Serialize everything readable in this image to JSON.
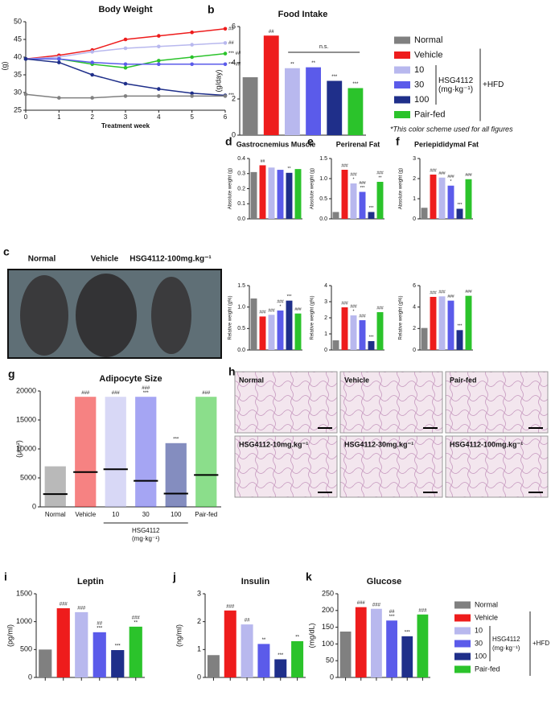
{
  "chart_data": [
    {
      "type": "line",
      "label": "a",
      "title": "Body Weight",
      "x_label": "Treatment week",
      "y_label": "(g)",
      "x": [
        0,
        1,
        2,
        3,
        4,
        5,
        6
      ],
      "xlim": [
        0,
        6
      ],
      "xticks": [
        0,
        1,
        2,
        3,
        4,
        5,
        6
      ],
      "ylim": [
        25,
        50
      ],
      "yticks": [
        25,
        30,
        35,
        40,
        45,
        50
      ],
      "series": [
        {
          "color": "#ee1c1c",
          "values": [
            39.5,
            40.5,
            42,
            45,
            46,
            47,
            48
          ],
          "annotation": "##"
        },
        {
          "color": "#b8b8ee",
          "values": [
            39.5,
            40,
            41.5,
            42.5,
            43,
            43.5,
            44
          ],
          "annotation": "##"
        },
        {
          "color": "#2bc32b",
          "values": [
            39.5,
            39.5,
            38,
            37,
            39,
            40,
            41
          ],
          "annotation": "*** ##"
        },
        {
          "color": "#5b5bea",
          "values": [
            39.5,
            39.5,
            38.5,
            38,
            38,
            38,
            38
          ],
          "annotation": "*** ##"
        },
        {
          "color": "#1f2f8a",
          "values": [
            39.5,
            38.5,
            35,
            32.5,
            31,
            29.8,
            29.2
          ],
          "annotation": "***"
        },
        {
          "color": "#808080",
          "values": [
            29.5,
            28.5,
            28.5,
            29,
            29,
            29,
            29
          ],
          "annotation": null
        }
      ]
    },
    {
      "type": "bar",
      "label": "b",
      "title": "Food Intake",
      "y_label": "(g/day)",
      "categories": [
        "Normal",
        "Vehicle",
        "10",
        "30",
        "100",
        "Pair-fed"
      ],
      "colors": [
        "#808080",
        "#ee1c1c",
        "#b8b8ee",
        "#5b5bea",
        "#1f2f8a",
        "#2bc32b"
      ],
      "values": [
        3.2,
        5.5,
        3.7,
        3.75,
        3.0,
        2.6
      ],
      "ylim": [
        0,
        6
      ],
      "yticks": [
        0,
        2,
        4,
        6
      ],
      "annotations": [
        [],
        [
          "##"
        ],
        [
          "**"
        ],
        [
          "**"
        ],
        [
          "***"
        ],
        [
          "***"
        ]
      ],
      "bracket_label": "n.s.",
      "legend": true,
      "legend_group": [
        "HSG4112",
        "(mg·kg⁻¹)"
      ],
      "legend_condition": "+HFD",
      "note": "*This color scheme used for all figures"
    },
    {
      "type": "bar",
      "label": "d",
      "title": "Gastrocnemius Muscle",
      "y_label": "Absolute weight (g)",
      "categories": [
        null,
        null,
        null,
        null,
        null,
        null
      ],
      "colors": [
        "#808080",
        "#ee1c1c",
        "#b8b8ee",
        "#5b5bea",
        "#1f2f8a",
        "#2bc32b"
      ],
      "values": [
        0.31,
        0.355,
        0.34,
        0.325,
        0.305,
        0.33
      ],
      "ylim": [
        0,
        0.4
      ],
      "yticks": [
        {
          "value": 0,
          "label": "0.0"
        },
        0.1,
        0.2,
        0.3,
        0.4
      ],
      "annotations": [
        [],
        [
          "##"
        ],
        [],
        [],
        [
          "**"
        ],
        []
      ]
    },
    {
      "type": "bar",
      "y_label": "Relative weight (g%)",
      "categories": [
        null,
        null,
        null,
        null,
        null,
        null
      ],
      "colors": [
        "#808080",
        "#ee1c1c",
        "#b8b8ee",
        "#5b5bea",
        "#1f2f8a",
        "#2bc32b"
      ],
      "values": [
        1.2,
        0.78,
        0.82,
        0.92,
        1.15,
        0.85
      ],
      "ylim": [
        0,
        1.5
      ],
      "yticks": [
        {
          "value": 0,
          "label": "0.0"
        },
        0.5,
        {
          "value": 1,
          "label": "1.0"
        },
        1.5
      ],
      "annotations": [
        [],
        [
          "###"
        ],
        [
          "###"
        ],
        [
          "###",
          "*"
        ],
        [
          "***"
        ],
        [
          "###"
        ]
      ]
    },
    {
      "type": "bar",
      "label": "e",
      "title": "Perirenal Fat",
      "y_label": "Absolute weight (g)",
      "categories": [
        null,
        null,
        null,
        null,
        null,
        null
      ],
      "colors": [
        "#808080",
        "#ee1c1c",
        "#b8b8ee",
        "#5b5bea",
        "#1f2f8a",
        "#2bc32b"
      ],
      "values": [
        0.17,
        1.22,
        0.88,
        0.67,
        0.17,
        0.92
      ],
      "ylim": [
        0,
        1.5
      ],
      "yticks": [
        {
          "value": 0,
          "label": "0.0"
        },
        0.5,
        {
          "value": 1,
          "label": "1.0"
        },
        1.5
      ],
      "annotations": [
        [],
        [
          "###"
        ],
        [
          "###",
          "*"
        ],
        [
          "###",
          "***"
        ],
        [
          "***"
        ],
        [
          "###",
          "**"
        ]
      ]
    },
    {
      "type": "bar",
      "y_label": "Relative weight (g%)",
      "categories": [
        null,
        null,
        null,
        null,
        null,
        null
      ],
      "colors": [
        "#808080",
        "#ee1c1c",
        "#b8b8ee",
        "#5b5bea",
        "#1f2f8a",
        "#2bc32b"
      ],
      "values": [
        0.6,
        2.65,
        2.15,
        1.85,
        0.55,
        2.35
      ],
      "ylim": [
        0,
        4
      ],
      "yticks": [
        0,
        1,
        2,
        3,
        4
      ],
      "annotations": [
        [],
        [
          "###"
        ],
        [
          "###",
          "*"
        ],
        [
          "###"
        ],
        [
          "***"
        ],
        [
          "###"
        ]
      ]
    },
    {
      "type": "bar",
      "label": "f",
      "title": "Periepididymal Fat",
      "y_label": "Absolute weight (g)",
      "categories": [
        null,
        null,
        null,
        null,
        null,
        null
      ],
      "colors": [
        "#808080",
        "#ee1c1c",
        "#b8b8ee",
        "#5b5bea",
        "#1f2f8a",
        "#2bc32b"
      ],
      "values": [
        0.55,
        2.2,
        2.05,
        1.65,
        0.5,
        1.97
      ],
      "ylim": [
        0,
        3
      ],
      "yticks": [
        0,
        1,
        2,
        3
      ],
      "annotations": [
        [],
        [
          "###"
        ],
        [
          "###"
        ],
        [
          "###",
          "*"
        ],
        [
          "***"
        ],
        [
          "###"
        ]
      ]
    },
    {
      "type": "bar",
      "y_label": "Relative weight (g%)",
      "categories": [
        null,
        null,
        null,
        null,
        null,
        null
      ],
      "colors": [
        "#808080",
        "#ee1c1c",
        "#b8b8ee",
        "#5b5bea",
        "#1f2f8a",
        "#2bc32b"
      ],
      "values": [
        2.05,
        4.95,
        5.0,
        4.6,
        1.85,
        5.05
      ],
      "ylim": [
        0,
        6
      ],
      "yticks": [
        0,
        2,
        4,
        6
      ],
      "annotations": [
        [],
        [
          "###"
        ],
        [
          "###"
        ],
        [
          "###"
        ],
        [
          "***"
        ],
        [
          "###"
        ]
      ]
    },
    {
      "type": "strip",
      "label": "g",
      "title": "Adipocyte Size",
      "y_label": "(μm²)",
      "categories": [
        "Normal",
        "Vehicle",
        "10",
        "30",
        "100",
        "Pair-fed"
      ],
      "colors": [
        "#808080",
        "#ee1c1c",
        "#b8b8ee",
        "#5b5bea",
        "#1f2f8a",
        "#2bc32b"
      ],
      "values": [
        2200,
        6000,
        6500,
        4500,
        2300,
        5500
      ],
      "max_values": [
        7000,
        19000,
        19000,
        19000,
        11000,
        19000
      ],
      "ylim": [
        0,
        20000
      ],
      "yticks": [
        0,
        5000,
        10000,
        15000,
        20000
      ],
      "annotations": [
        [],
        [
          "###"
        ],
        [
          "###"
        ],
        [
          "###",
          "***"
        ],
        [
          "***"
        ],
        [
          "###"
        ]
      ],
      "group_label": [
        "HSG4112",
        "(mg·kg⁻¹)"
      ]
    },
    {
      "type": "bar",
      "label": "i",
      "title": "Leptin",
      "y_label": "(pg/ml)",
      "categories": [
        null,
        null,
        null,
        null,
        null,
        null
      ],
      "colors": [
        "#808080",
        "#ee1c1c",
        "#b8b8ee",
        "#5b5bea",
        "#1f2f8a",
        "#2bc32b"
      ],
      "values": [
        500,
        1240,
        1170,
        810,
        490,
        910
      ],
      "ylim": [
        0,
        1500
      ],
      "yticks": [
        0,
        500,
        1000,
        1500
      ],
      "annotations": [
        [],
        [
          "###"
        ],
        [
          "###"
        ],
        [
          "##",
          "***"
        ],
        [
          "***"
        ],
        [
          "###",
          "**"
        ]
      ]
    },
    {
      "type": "bar",
      "label": "j",
      "title": "Insulin",
      "y_label": "(ng/ml)",
      "categories": [
        null,
        null,
        null,
        null,
        null,
        null
      ],
      "colors": [
        "#808080",
        "#ee1c1c",
        "#b8b8ee",
        "#5b5bea",
        "#1f2f8a",
        "#2bc32b"
      ],
      "values": [
        0.8,
        2.4,
        1.9,
        1.2,
        0.65,
        1.3
      ],
      "ylim": [
        0,
        3
      ],
      "yticks": [
        0,
        1,
        2,
        3
      ],
      "annotations": [
        [],
        [
          "###"
        ],
        [
          "##"
        ],
        [
          "**"
        ],
        [
          "***"
        ],
        [
          "**"
        ]
      ]
    },
    {
      "type": "bar",
      "label": "k",
      "title": "Glucose",
      "y_label": "(mg/dL)",
      "categories": [
        "Normal",
        "Vehicle",
        "10",
        "30",
        "100",
        "Pair-fed"
      ],
      "colors": [
        "#808080",
        "#ee1c1c",
        "#b8b8ee",
        "#5b5bea",
        "#1f2f8a",
        "#2bc32b"
      ],
      "values": [
        137,
        210,
        205,
        170,
        123,
        188
      ],
      "ylim": [
        0,
        250
      ],
      "yticks": [
        0,
        50,
        100,
        150,
        200,
        250
      ],
      "annotations": [
        [],
        [
          "###"
        ],
        [
          "###"
        ],
        [
          "##",
          "***"
        ],
        [
          "***"
        ],
        [
          "###"
        ]
      ],
      "legend": true,
      "legend_group": [
        "HSG4112",
        "(mg·kg⁻¹)"
      ],
      "legend_condition": "+HFD"
    }
  ],
  "images": {
    "c": {
      "label": "c",
      "captions": [
        "Normal",
        "Vehicle",
        "HSG4112-100mg.kg⁻¹"
      ]
    },
    "h": {
      "label": "h",
      "panels": [
        "Normal",
        "Vehicle",
        "Pair-fed",
        "HSG4112-10mg.kg⁻¹",
        "HSG4112-30mg.kg⁻¹",
        "HSG4112-100mg.kg⁻¹"
      ]
    }
  }
}
